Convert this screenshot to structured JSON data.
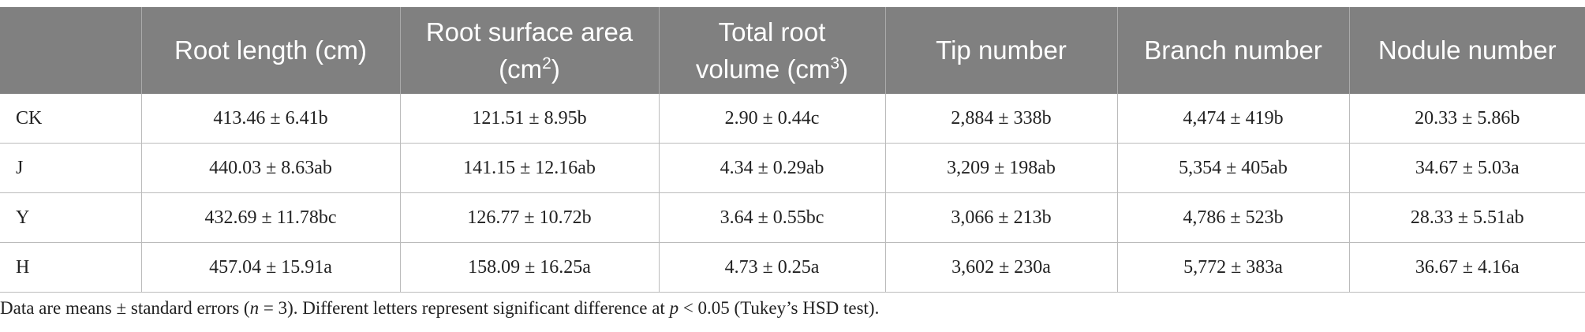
{
  "table": {
    "header": [
      {
        "text": ""
      },
      {
        "text": "Root length (cm)"
      },
      {
        "text": "Root surface area (cm",
        "sup": "2",
        "after": ")"
      },
      {
        "text": "Total root volume (cm",
        "sup": "3",
        "after": ")"
      },
      {
        "text": "Tip number"
      },
      {
        "text": "Branch number"
      },
      {
        "text": "Nodule number"
      }
    ],
    "rows": [
      [
        "CK",
        "413.46 ± 6.41b",
        "121.51 ± 8.95b",
        "2.90 ± 0.44c",
        "2,884 ± 338b",
        "4,474 ± 419b",
        "20.33 ± 5.86b"
      ],
      [
        "J",
        "440.03 ± 8.63ab",
        "141.15 ± 12.16ab",
        "4.34 ± 0.29ab",
        "3,209 ± 198ab",
        "5,354 ± 405ab",
        "34.67 ± 5.03a"
      ],
      [
        "Y",
        "432.69 ± 11.78bc",
        "126.77 ± 10.72b",
        "3.64 ± 0.55bc",
        "3,066 ± 213b",
        "4,786 ± 523b",
        "28.33 ± 5.51ab"
      ],
      [
        "H",
        "457.04 ± 15.91a",
        "158.09 ± 16.25a",
        "4.73 ± 0.25a",
        "3,602 ± 230a",
        "5,772 ± 383a",
        "36.67 ± 4.16a"
      ]
    ]
  },
  "footnote": [
    "Data are means ± standard errors (",
    "n",
    " = 3). Different letters represent significant difference at ",
    "p",
    " < 0.05 (Tukey’s HSD test)."
  ]
}
